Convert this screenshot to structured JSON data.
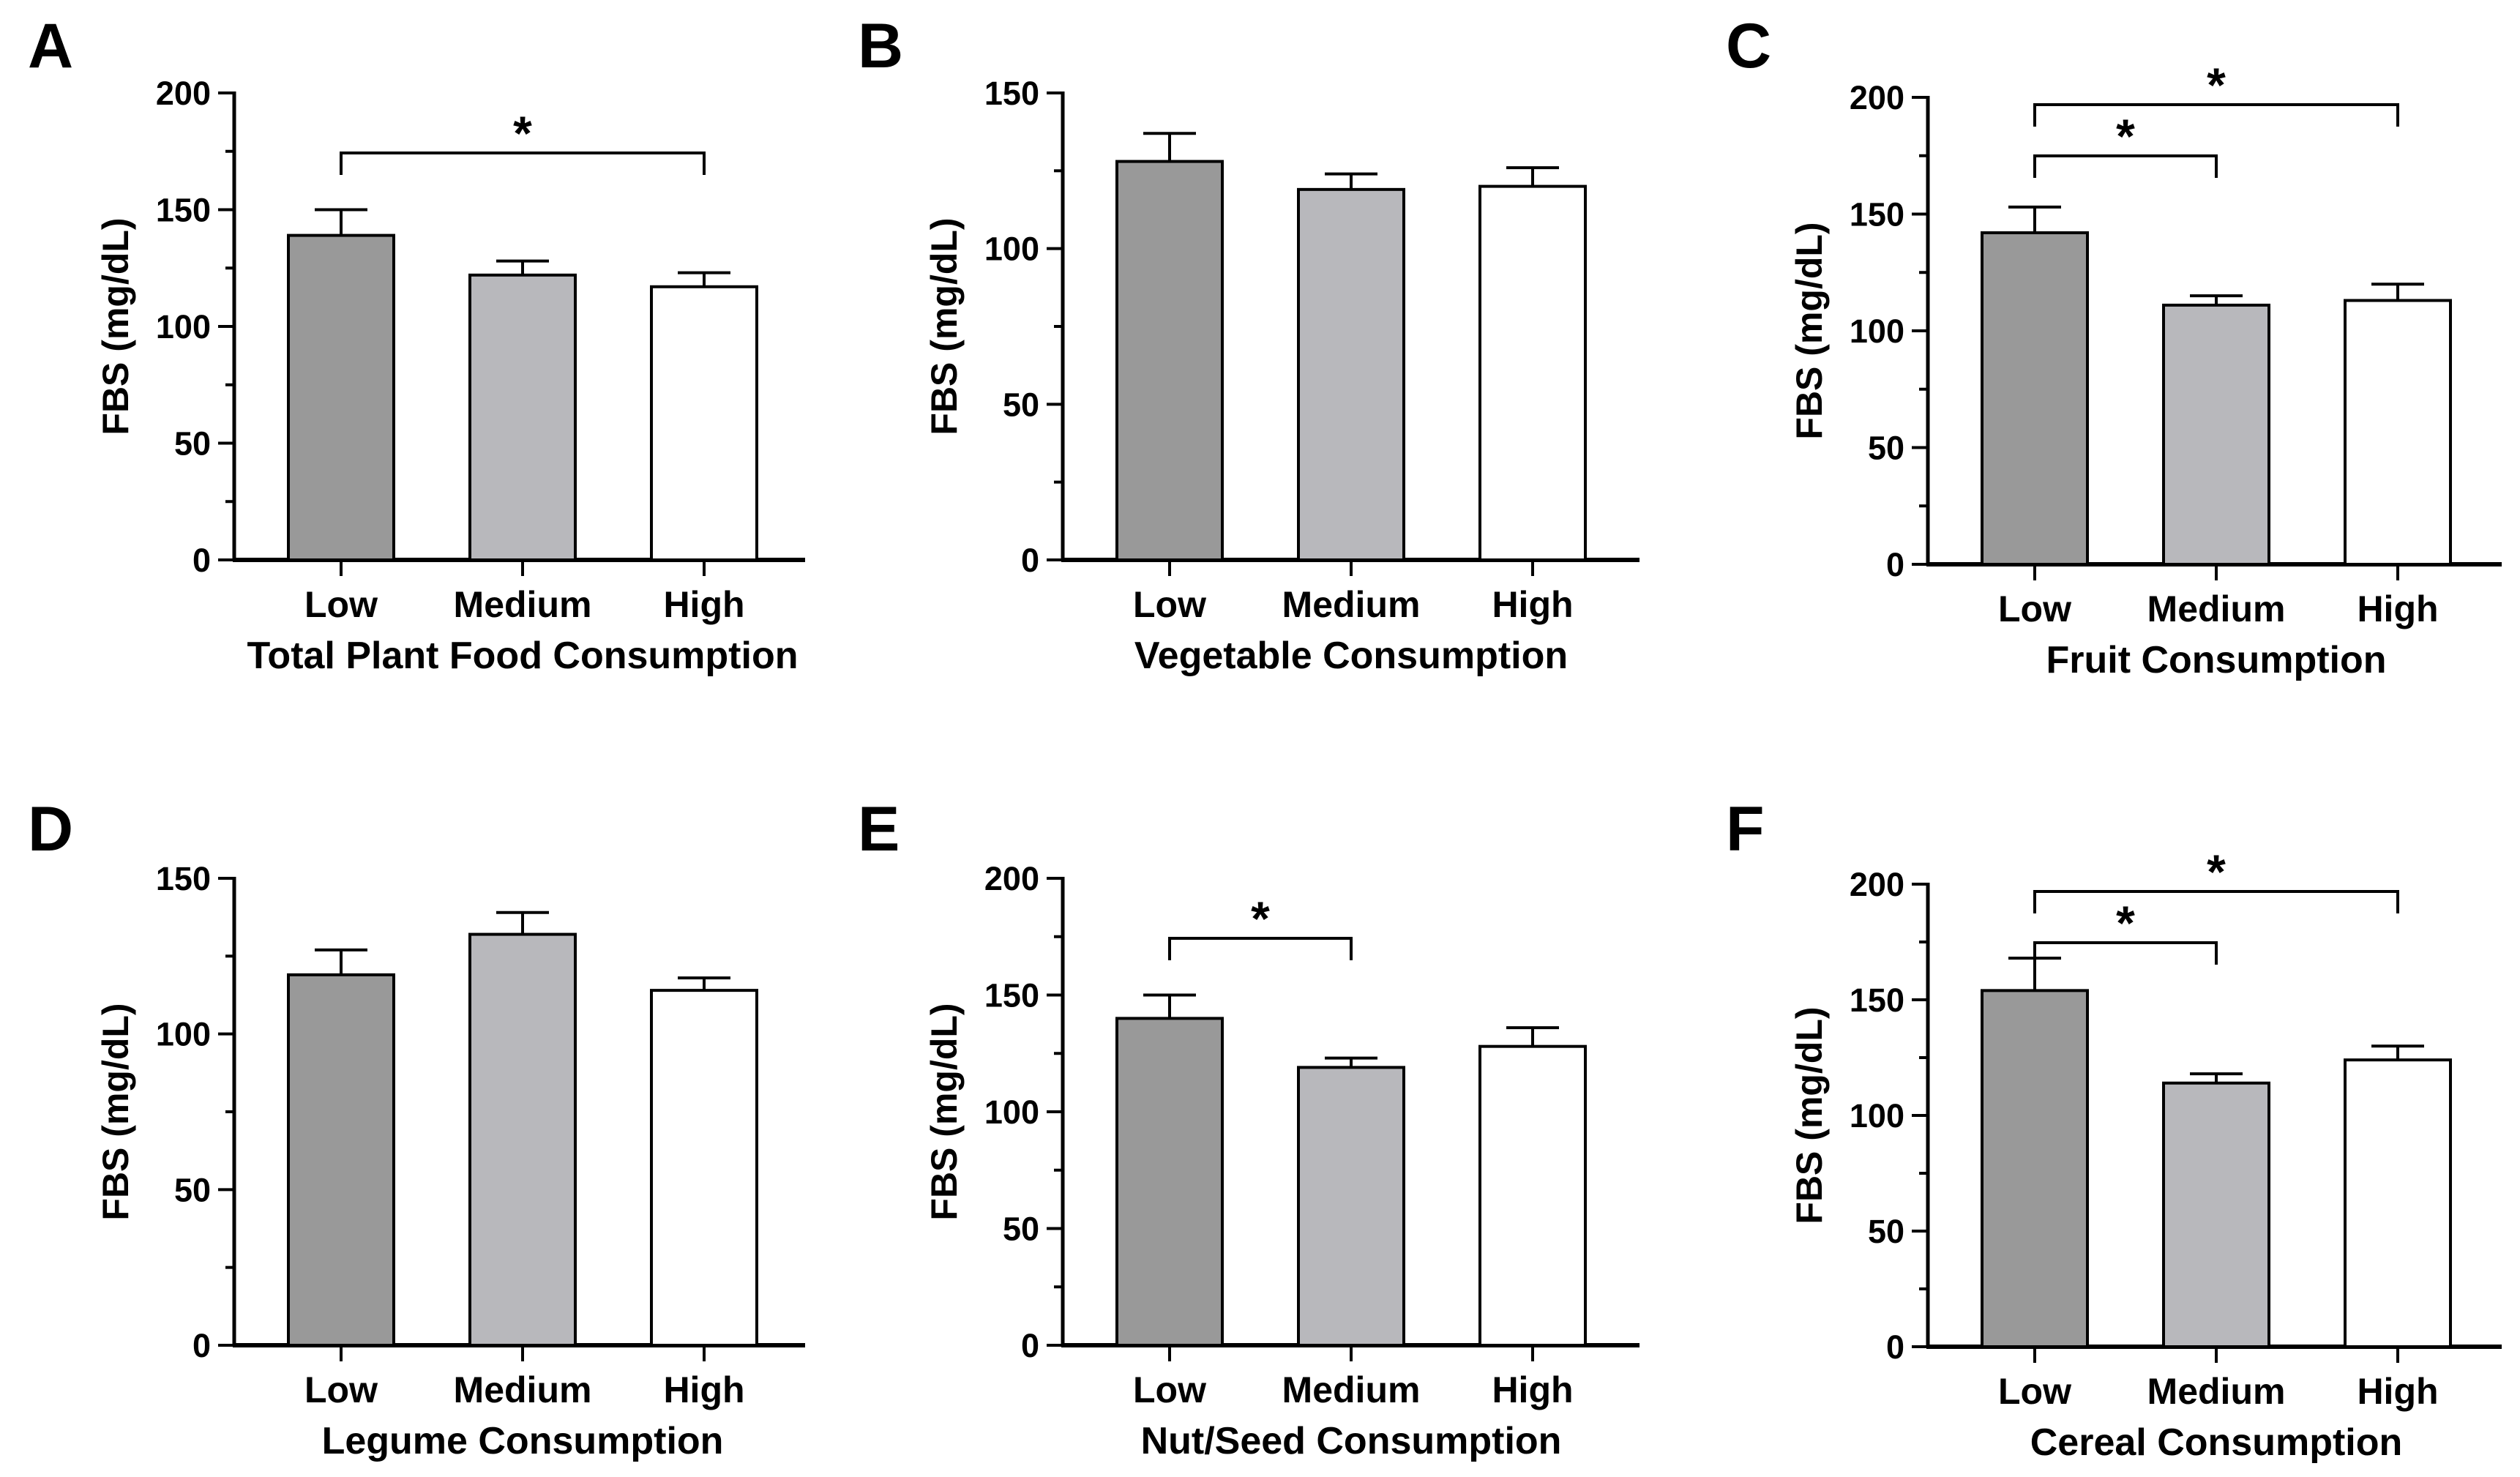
{
  "colors": {
    "low": "#999999",
    "medium": "#b8b8bc",
    "high": "#ffffff",
    "stroke": "#000000"
  },
  "chart_data": [
    {
      "panel": "A",
      "type": "bar",
      "title": "",
      "ylabel": "FBS (mg/dL)",
      "xlabel": "Total Plant Food Consumption",
      "categories": [
        "Low",
        "Medium",
        "High"
      ],
      "values": [
        139,
        122,
        117
      ],
      "errors": [
        11,
        6,
        6
      ],
      "ylim": [
        0,
        200
      ],
      "yticks": [
        "0",
        "50",
        "100",
        "150",
        "200"
      ],
      "significance": [
        {
          "from": 0,
          "to": 2,
          "label": "*"
        }
      ]
    },
    {
      "panel": "B",
      "type": "bar",
      "title": "",
      "ylabel": "FBS (mg/dL)",
      "xlabel": "Vegetable Consumption",
      "categories": [
        "Low",
        "Medium",
        "High"
      ],
      "values": [
        128,
        119,
        120
      ],
      "errors": [
        9,
        5,
        6
      ],
      "ylim": [
        0,
        150
      ],
      "yticks": [
        "0",
        "50",
        "100",
        "150"
      ],
      "significance": []
    },
    {
      "panel": "C",
      "type": "bar",
      "title": "",
      "ylabel": "FBS (mg/dL)",
      "xlabel": "Fruit Consumption",
      "categories": [
        "Low",
        "Medium",
        "High"
      ],
      "values": [
        142,
        111,
        113
      ],
      "errors": [
        11,
        4,
        7
      ],
      "ylim": [
        0,
        200
      ],
      "yticks": [
        "0",
        "50",
        "100",
        "150",
        "200"
      ],
      "significance": [
        {
          "from": 0,
          "to": 1,
          "label": "*"
        },
        {
          "from": 0,
          "to": 2,
          "label": "*"
        }
      ]
    },
    {
      "panel": "D",
      "type": "bar",
      "title": "",
      "ylabel": "FBS (mg/dL)",
      "xlabel": "Legume Consumption",
      "categories": [
        "Low",
        "Medium",
        "High"
      ],
      "values": [
        119,
        132,
        114
      ],
      "errors": [
        8,
        7,
        4
      ],
      "ylim": [
        0,
        150
      ],
      "yticks": [
        "0",
        "50",
        "100",
        "150"
      ],
      "significance": []
    },
    {
      "panel": "E",
      "type": "bar",
      "title": "",
      "ylabel": "FBS (mg/dL)",
      "xlabel": "Nut/Seed Consumption",
      "categories": [
        "Low",
        "Medium",
        "High"
      ],
      "values": [
        140,
        119,
        128
      ],
      "errors": [
        10,
        4,
        8
      ],
      "ylim": [
        0,
        200
      ],
      "yticks": [
        "0",
        "50",
        "100",
        "150",
        "200"
      ],
      "significance": [
        {
          "from": 0,
          "to": 1,
          "label": "*"
        }
      ]
    },
    {
      "panel": "F",
      "type": "bar",
      "title": "",
      "ylabel": "FBS (mg/dL)",
      "xlabel": "Cereal Consumption",
      "categories": [
        "Low",
        "Medium",
        "High"
      ],
      "values": [
        154,
        114,
        124
      ],
      "errors": [
        14,
        4,
        6
      ],
      "ylim": [
        0,
        200
      ],
      "yticks": [
        "0",
        "50",
        "100",
        "150",
        "200"
      ],
      "significance": [
        {
          "from": 0,
          "to": 1,
          "label": "*"
        },
        {
          "from": 0,
          "to": 2,
          "label": "*"
        }
      ]
    }
  ]
}
